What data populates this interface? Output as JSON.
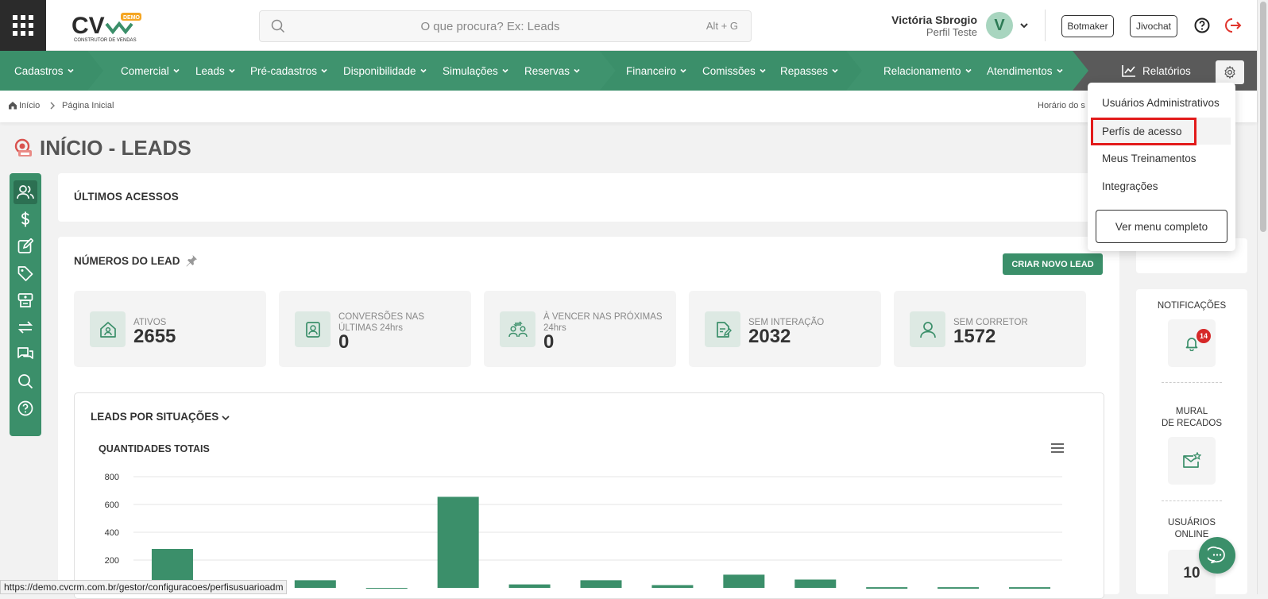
{
  "header": {
    "logo_text": "CV",
    "logo_badge": "DEMO",
    "logo_tagline": "CONSTRUTOR DE VENDAS",
    "search": {
      "placeholder": "O que procura? Ex: Leads",
      "shortcut": "Alt + G"
    },
    "user": {
      "name": "Victória Sbrogio",
      "profile": "Perfil Teste",
      "initial": "V"
    },
    "buttons": {
      "botmaker": "Botmaker",
      "jivochat": "Jivochat"
    }
  },
  "nav": {
    "items": [
      {
        "label": "Cadastros"
      },
      {
        "label": "Comercial"
      },
      {
        "label": "Leads"
      },
      {
        "label": "Pré-cadastros"
      },
      {
        "label": "Disponibilidade"
      },
      {
        "label": "Simulações"
      },
      {
        "label": "Reservas"
      },
      {
        "label": "Financeiro"
      },
      {
        "label": "Comissões"
      },
      {
        "label": "Repasses"
      },
      {
        "label": "Relacionamento"
      },
      {
        "label": "Atendimentos"
      }
    ],
    "reports": "Relatórios",
    "colors": {
      "primary": "#3b8f6a",
      "dark": "#2c7052",
      "light": "#4a9b77",
      "reports_bg": "#5a5a5a"
    }
  },
  "breadcrumb": {
    "home": "Início",
    "current": "Página Inicial",
    "time_label": "Horário do s"
  },
  "page": {
    "title": "INÍCIO - LEADS"
  },
  "sidebar": {
    "icons": [
      "users-icon",
      "dollar-icon",
      "edit-icon",
      "tag-icon",
      "register-icon",
      "transfer-icon",
      "chat-icon",
      "search-icon",
      "help-icon"
    ]
  },
  "last_access": {
    "title": "ÚLTIMOS ACESSOS"
  },
  "numbers": {
    "title": "NÚMEROS DO LEAD",
    "new_lead_button": "CRIAR NOVO LEAD",
    "stats": [
      {
        "label": "ATIVOS",
        "value": "2655",
        "icon": "home-icon"
      },
      {
        "label": "CONVERSÕES NAS ÚLTIMAS 24hrs",
        "value": "0",
        "icon": "profile-icon"
      },
      {
        "label": "À VENCER NAS PRÓXIMAS 24hrs",
        "value": "0",
        "icon": "people-icon"
      },
      {
        "label": "SEM INTERAÇÃO",
        "value": "2032",
        "icon": "document-icon"
      },
      {
        "label": "SEM CORRETOR",
        "value": "1572",
        "icon": "person-icon"
      }
    ]
  },
  "chart_section": {
    "heading": "LEADS POR SITUAÇÕES"
  },
  "chart_data": {
    "type": "bar",
    "title": "QUANTIDADES TOTAIS",
    "yticks": [
      "800",
      "600",
      "400",
      "200"
    ],
    "ylim": [
      0,
      800
    ],
    "values": [
      280,
      0,
      55,
      0,
      655,
      25,
      55,
      20,
      95,
      60,
      5,
      5,
      5
    ],
    "grid": true,
    "color": "#3b8f6a"
  },
  "right_panel": {
    "notifications": {
      "title": "NOTIFICAÇÕES",
      "badge": "14"
    },
    "mural": {
      "title_line1": "MURAL",
      "title_line2": "DE RECADOS"
    },
    "online": {
      "title_line1": "USUÁRIOS",
      "title_line2": "ONLINE",
      "count": "10"
    }
  },
  "dropdown": {
    "items": [
      "Usuários Administrativos",
      "Perfís de acesso",
      "Meus Treinamentos",
      "Integrações"
    ],
    "full_menu": "Ver menu completo",
    "highlight_color": "#e21b1b"
  },
  "status_url": "https://demo.cvcrm.com.br/gestor/configuracoes/perfisusuarioadm"
}
